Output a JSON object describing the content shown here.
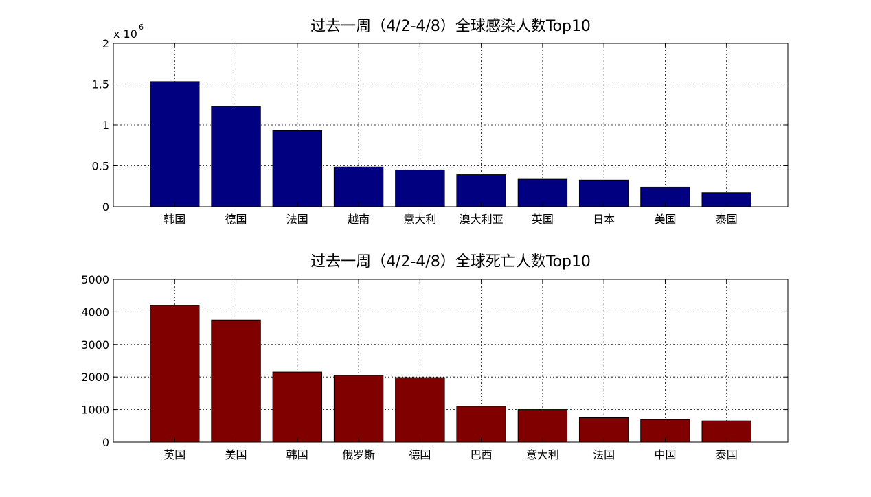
{
  "chart_data": [
    {
      "type": "bar",
      "title": "过去一周（4/2-4/8）全球感染人数Top10",
      "categories": [
        "韩国",
        "德国",
        "法国",
        "越南",
        "意大利",
        "澳大利亚",
        "英国",
        "日本",
        "美国",
        "泰国"
      ],
      "values": [
        1530000,
        1230000,
        930000,
        485000,
        450000,
        390000,
        335000,
        325000,
        240000,
        170000
      ],
      "ylim": [
        0,
        2000000
      ],
      "yticks": [
        0,
        500000,
        1000000,
        1500000,
        2000000
      ],
      "ytick_labels": [
        "0",
        "0.5",
        "1",
        "1.5",
        "2"
      ],
      "y_exponent_label": "x 10",
      "y_exponent_power": "6",
      "color": "#000080",
      "grid": true
    },
    {
      "type": "bar",
      "title": "过去一周（4/2-4/8）全球死亡人数Top10",
      "categories": [
        "英国",
        "美国",
        "韩国",
        "俄罗斯",
        "德国",
        "巴西",
        "意大利",
        "法国",
        "中国",
        "泰国"
      ],
      "values": [
        4200,
        3750,
        2150,
        2050,
        1980,
        1100,
        1000,
        750,
        690,
        650
      ],
      "ylim": [
        0,
        5000
      ],
      "yticks": [
        0,
        1000,
        2000,
        3000,
        4000,
        5000
      ],
      "ytick_labels": [
        "0",
        "1000",
        "2000",
        "3000",
        "4000",
        "5000"
      ],
      "color": "#800000",
      "grid": true
    }
  ]
}
